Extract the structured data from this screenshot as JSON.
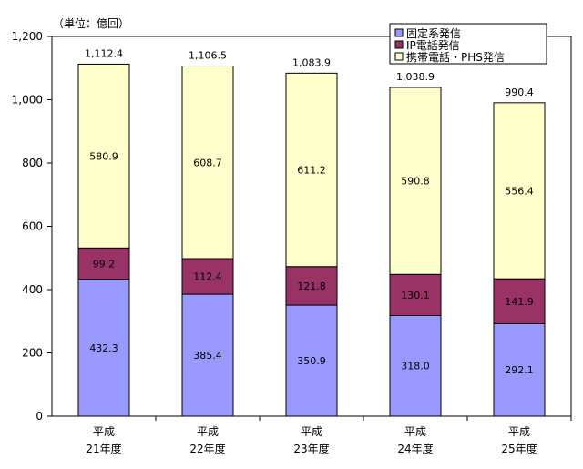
{
  "chart_data": {
    "type": "bar",
    "stacked": true,
    "unit_label": "（単位：億回）",
    "categories": [
      [
        "平成",
        "21年度"
      ],
      [
        "平成",
        "22年度"
      ],
      [
        "平成",
        "23年度"
      ],
      [
        "平成",
        "24年度"
      ],
      [
        "平成",
        "25年度"
      ]
    ],
    "series": [
      {
        "name": "固定系発信",
        "color": "#9999ff",
        "values": [
          432.3,
          385.4,
          350.9,
          318.0,
          292.1
        ],
        "labels": [
          "432.3",
          "385.4",
          "350.9",
          "318.0",
          "292.1"
        ]
      },
      {
        "name": "IP電話発信",
        "color": "#993366",
        "values": [
          99.2,
          112.4,
          121.8,
          130.1,
          141.9
        ],
        "labels": [
          "99.2",
          "112.4",
          "121.8",
          "130.1",
          "141.9"
        ]
      },
      {
        "name": "携帯電話・PHS発信",
        "color": "#ffffcc",
        "values": [
          580.9,
          608.7,
          611.2,
          590.8,
          556.4
        ],
        "labels": [
          "580.9",
          "608.7",
          "611.2",
          "590.8",
          "556.4"
        ]
      }
    ],
    "totals": [
      "1,112.4",
      "1,106.5",
      "1,083.9",
      "1,038.9",
      "990.4"
    ],
    "ylim": [
      0,
      1200
    ],
    "yticks": [
      0,
      200,
      400,
      600,
      800,
      1000,
      1200
    ],
    "ytick_labels": [
      "0",
      "200",
      "400",
      "600",
      "800",
      "1,000",
      "1,200"
    ],
    "grid": false,
    "legend_position": "top-right"
  }
}
